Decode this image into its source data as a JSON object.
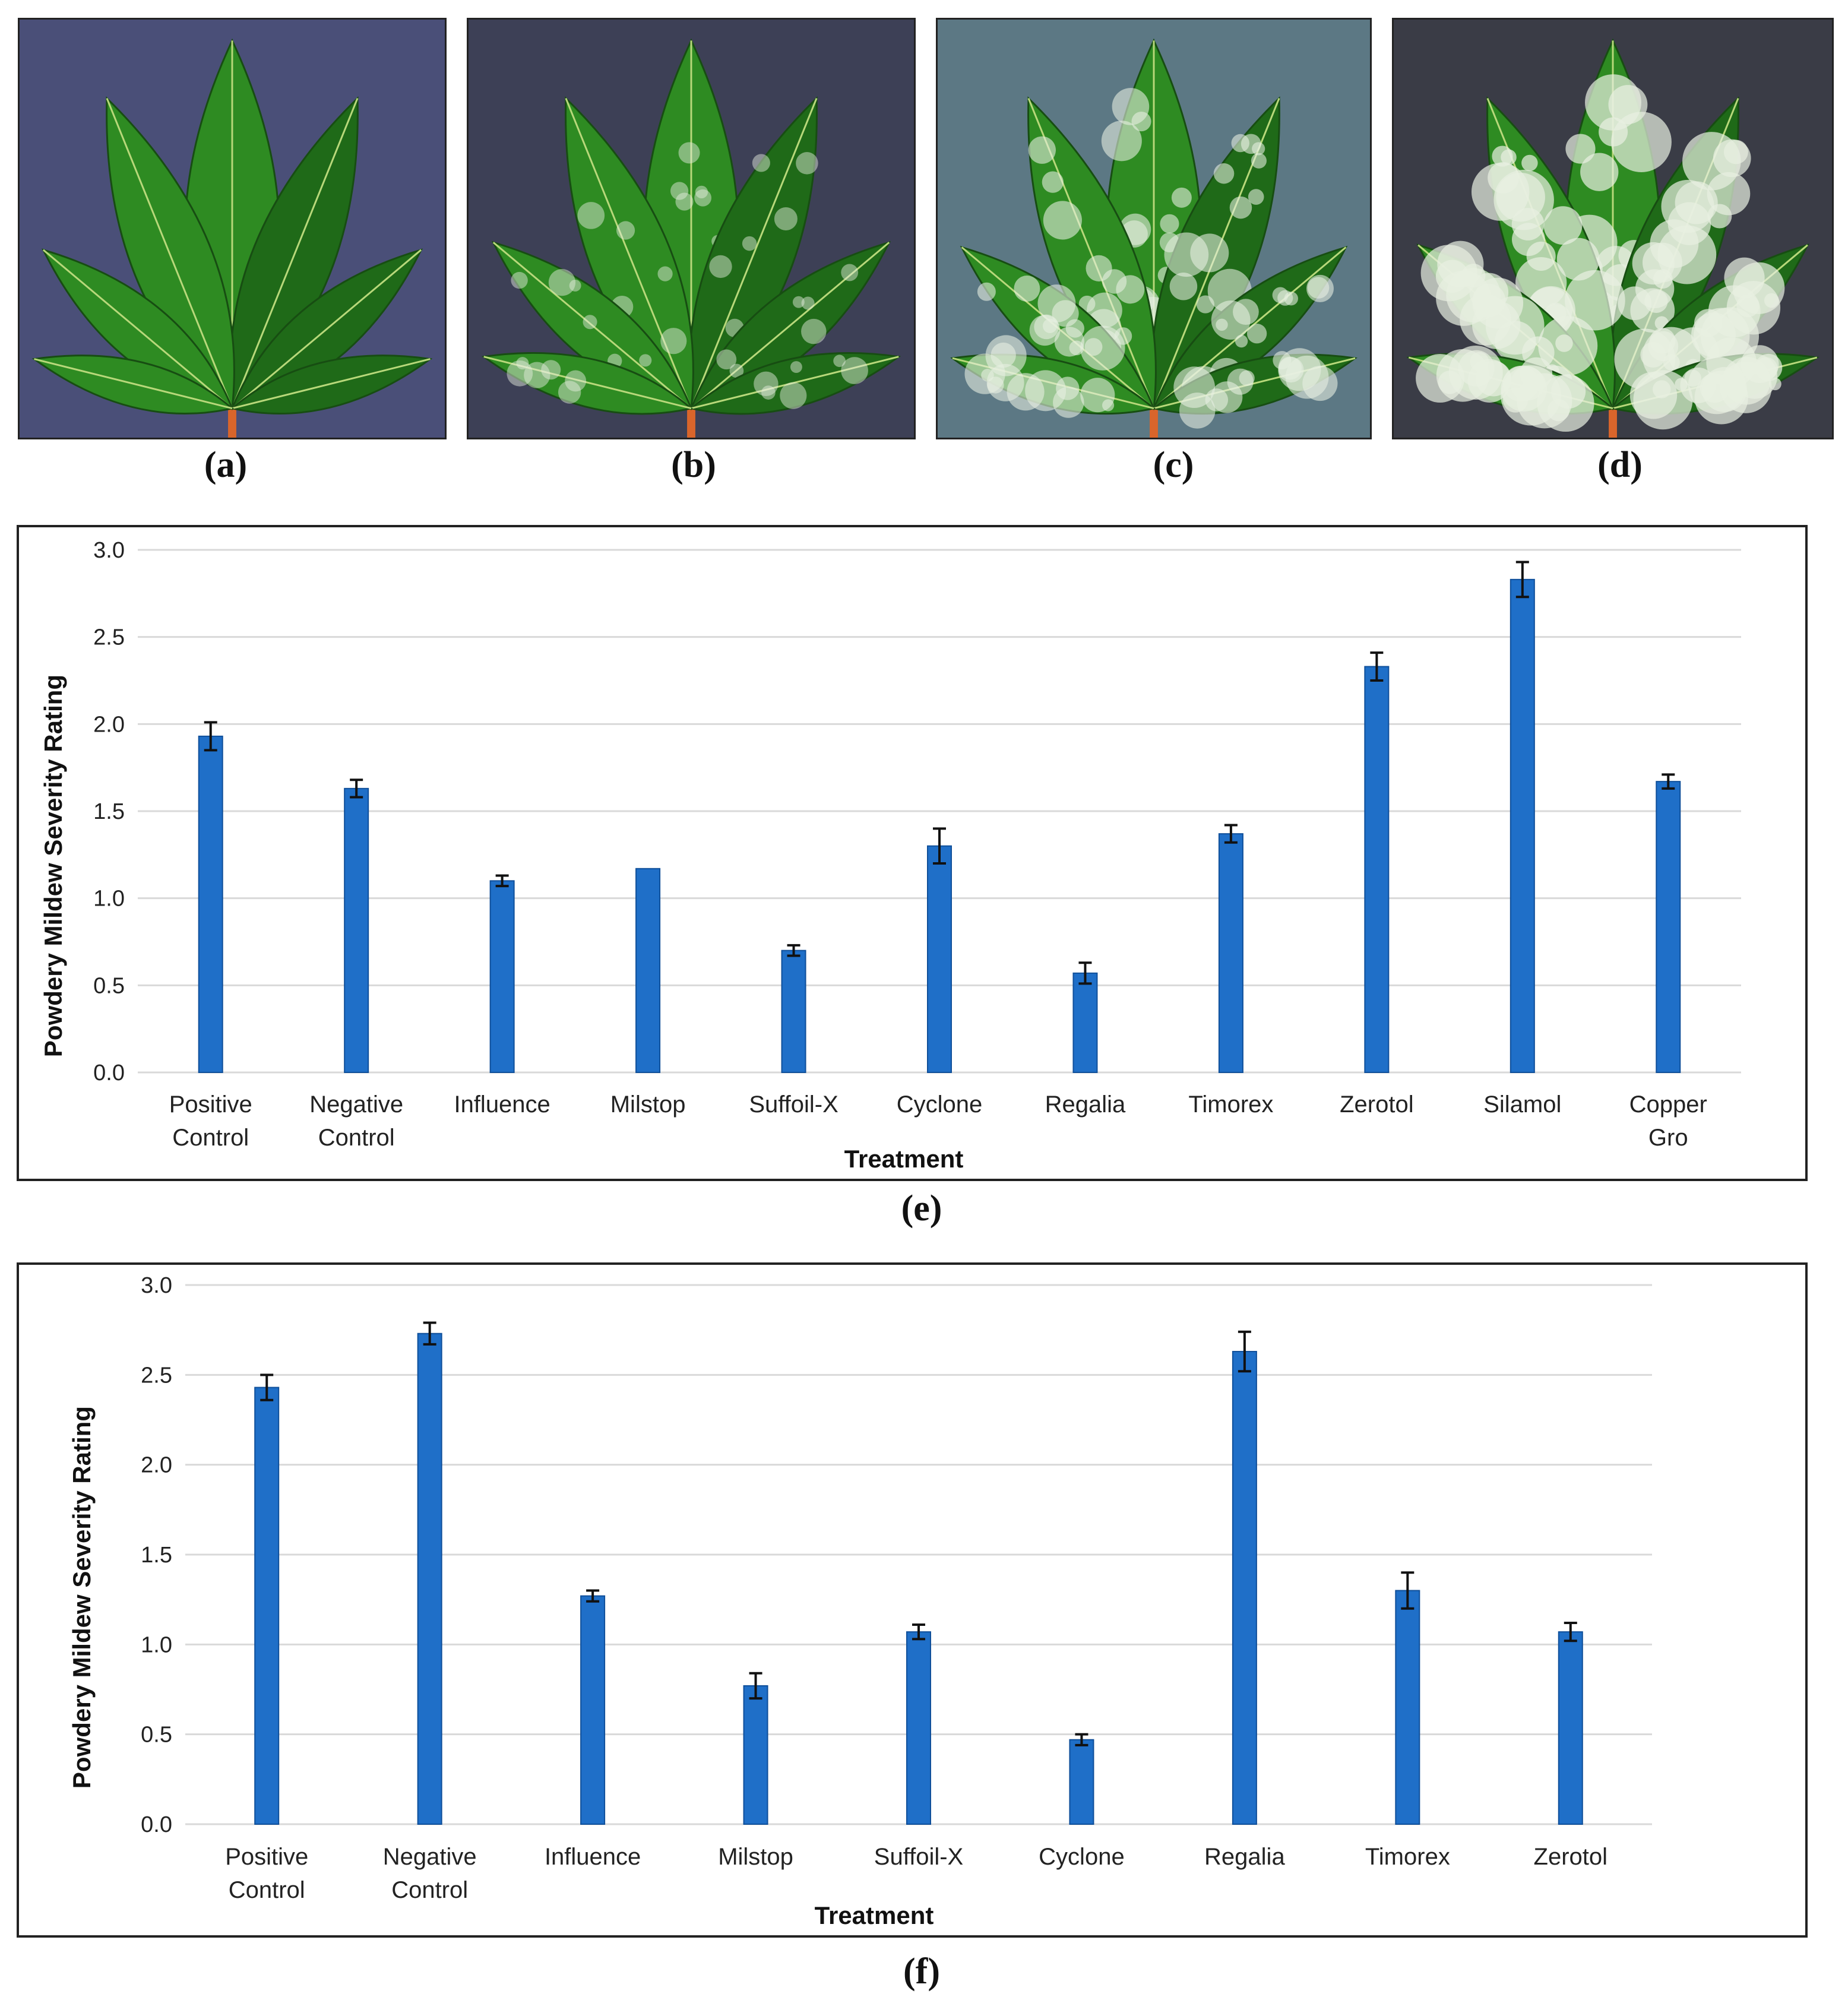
{
  "leaf_panels": [
    {
      "label": "(a)",
      "image": "healthy-leaf"
    },
    {
      "label": "(b)",
      "image": "light-mildew-leaf"
    },
    {
      "label": "(c)",
      "image": "moderate-mildew-leaf"
    },
    {
      "label": "(d)",
      "image": "heavy-mildew-leaf"
    }
  ],
  "colors": {
    "bar": "#1f6fc8",
    "grid": "#d9d9d9",
    "leaf": "#2e8b22",
    "leaf_dark": "#1f6a18",
    "mildew": "#e8efe2",
    "stem": "#d9652b"
  },
  "chart_data": [
    {
      "type": "bar",
      "panel_label": "(e)",
      "xlabel": "Treatment",
      "ylabel": "Powdery Mildew Severity Rating",
      "ylim": [
        0,
        3
      ],
      "yticks": [
        "0.0",
        "0.5",
        "1.0",
        "1.5",
        "2.0",
        "2.5",
        "3.0"
      ],
      "grid": true,
      "categories": [
        [
          "Positive",
          "Control"
        ],
        [
          "Negative",
          "Control"
        ],
        [
          "Influence"
        ],
        [
          "Milstop"
        ],
        [
          "Suffoil-X"
        ],
        [
          "Cyclone"
        ],
        [
          "Regalia"
        ],
        [
          "Timorex"
        ],
        [
          "Zerotol"
        ],
        [
          "Silamol"
        ],
        [
          "Copper",
          "Gro"
        ]
      ],
      "values": [
        1.93,
        1.63,
        1.1,
        1.17,
        0.7,
        1.3,
        0.57,
        1.37,
        2.33,
        2.83,
        1.67
      ],
      "errors": [
        0.08,
        0.05,
        0.03,
        0.0,
        0.03,
        0.1,
        0.06,
        0.05,
        0.08,
        0.1,
        0.04
      ]
    },
    {
      "type": "bar",
      "panel_label": "(f)",
      "xlabel": "Treatment",
      "ylabel": "Powdery Mildew Severity Rating",
      "ylim": [
        0,
        3
      ],
      "yticks": [
        "0.0",
        "0.5",
        "1.0",
        "1.5",
        "2.0",
        "2.5",
        "3.0"
      ],
      "grid": true,
      "categories": [
        [
          "Positive",
          "Control"
        ],
        [
          "Negative",
          "Control"
        ],
        [
          "Influence"
        ],
        [
          "Milstop"
        ],
        [
          "Suffoil-X"
        ],
        [
          "Cyclone"
        ],
        [
          "Regalia"
        ],
        [
          "Timorex"
        ],
        [
          "Zerotol"
        ]
      ],
      "values": [
        2.43,
        2.73,
        1.27,
        0.77,
        1.07,
        0.47,
        2.63,
        1.3,
        1.07
      ],
      "errors": [
        0.07,
        0.06,
        0.03,
        0.07,
        0.04,
        0.03,
        0.11,
        0.1,
        0.05
      ]
    }
  ]
}
